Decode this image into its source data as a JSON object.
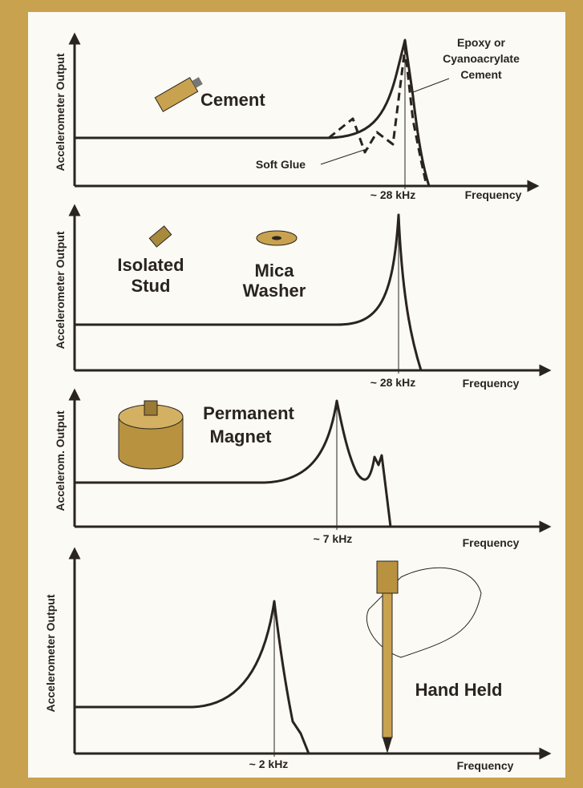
{
  "panels": [
    {
      "y_label": "Accelerometer Output",
      "title": [
        "Cement"
      ],
      "notes": [
        [
          "Epoxy or",
          "Cyanoacrylate",
          "Cement"
        ],
        [
          "Soft Glue"
        ]
      ],
      "peak_label": "~ 28 kHz",
      "x_label": "Frequency"
    },
    {
      "y_label": "Accelerometer Output",
      "title": [
        "Isolated",
        "Stud"
      ],
      "notes": [
        [
          "Mica",
          "Washer"
        ]
      ],
      "peak_label": "~ 28 kHz",
      "x_label": "Frequency"
    },
    {
      "y_label": "Accelerom. Output",
      "title": [
        "Permanent",
        "Magnet"
      ],
      "notes": [],
      "peak_label": "~ 7 kHz",
      "x_label": "Frequency"
    },
    {
      "y_label": "Accelerometer Output",
      "title": [
        "Hand Held"
      ],
      "notes": [],
      "peak_label": "~ 2 kHz",
      "x_label": "Frequency"
    }
  ]
}
